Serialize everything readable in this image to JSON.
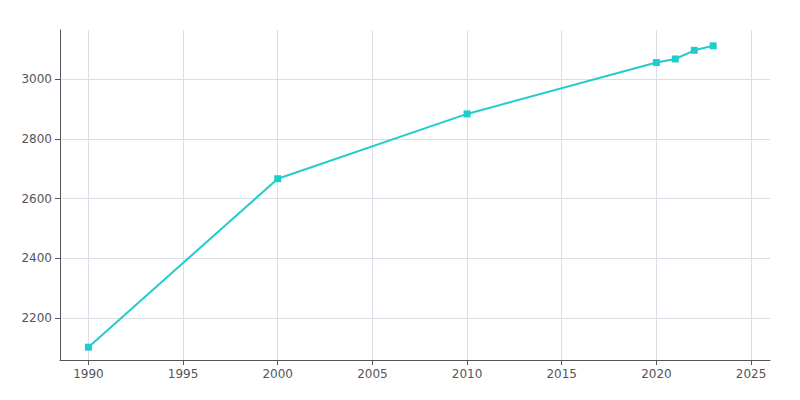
{
  "chart_data": {
    "type": "line",
    "x": [
      1990,
      2000,
      2010,
      2020,
      2021,
      2022,
      2023
    ],
    "values": [
      2103,
      2667,
      2884,
      3056,
      3068,
      3097,
      3112
    ],
    "color": "#22CCCC",
    "marker": "square",
    "xlim": [
      1988.5,
      2026
    ],
    "ylim": [
      2060,
      3165
    ],
    "xticks": [
      1990,
      1995,
      2000,
      2005,
      2010,
      2015,
      2020,
      2025
    ],
    "yticks": [
      2200,
      2400,
      2600,
      2800,
      3000
    ],
    "grid": true
  }
}
